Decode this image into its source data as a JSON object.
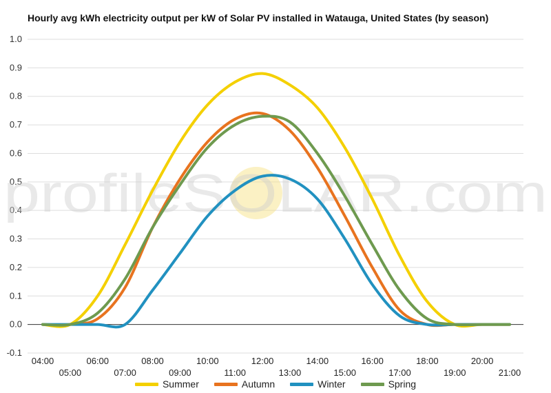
{
  "chart_data": {
    "type": "line",
    "title": "Hourly avg kWh electricity output per kW of Solar PV installed in Watauga, United States (by season)",
    "xlabel": "",
    "ylabel": "",
    "ylim": [
      -0.1,
      1.0
    ],
    "yticks": [
      "1.0",
      "0.9",
      "0.8",
      "0.7",
      "0.6",
      "0.5",
      "0.4",
      "0.3",
      "0.2",
      "0.1",
      "0.0",
      "-0.1"
    ],
    "x": [
      "04:00",
      "05:00",
      "06:00",
      "07:00",
      "08:00",
      "09:00",
      "10:00",
      "11:00",
      "12:00",
      "13:00",
      "14:00",
      "15:00",
      "16:00",
      "17:00",
      "18:00",
      "19:00",
      "20:00",
      "21:00"
    ],
    "grid": true,
    "legend_position": "bottom",
    "series": [
      {
        "name": "Summer",
        "color": "#f4d000",
        "values": [
          0.0,
          0.0,
          0.1,
          0.28,
          0.47,
          0.64,
          0.77,
          0.85,
          0.88,
          0.84,
          0.76,
          0.62,
          0.44,
          0.24,
          0.08,
          0.0,
          0.0,
          0.0
        ]
      },
      {
        "name": "Autumn",
        "color": "#e8731f",
        "values": [
          0.0,
          0.0,
          0.02,
          0.13,
          0.34,
          0.51,
          0.64,
          0.72,
          0.74,
          0.68,
          0.55,
          0.38,
          0.2,
          0.05,
          0.0,
          0.0,
          0.0,
          0.0
        ]
      },
      {
        "name": "Winter",
        "color": "#2191c0",
        "values": [
          0.0,
          0.0,
          0.0,
          0.0,
          0.12,
          0.25,
          0.38,
          0.47,
          0.52,
          0.51,
          0.44,
          0.3,
          0.14,
          0.03,
          0.0,
          0.0,
          0.0,
          0.0
        ]
      },
      {
        "name": "Spring",
        "color": "#6e9a4f",
        "values": [
          0.0,
          0.0,
          0.04,
          0.16,
          0.34,
          0.49,
          0.62,
          0.7,
          0.73,
          0.71,
          0.6,
          0.45,
          0.28,
          0.12,
          0.02,
          0.0,
          0.0,
          0.0
        ]
      }
    ]
  },
  "watermark": {
    "text": "profileSOLAR.com"
  }
}
